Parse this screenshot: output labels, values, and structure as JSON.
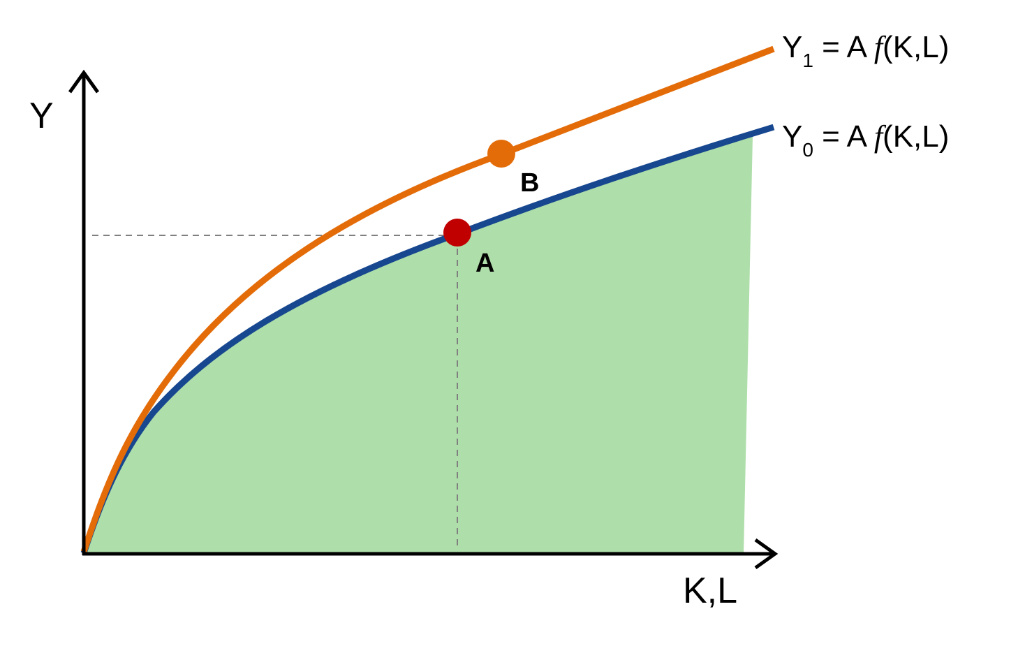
{
  "axes": {
    "y_label": "Y",
    "x_label": "K,L"
  },
  "curves": [
    {
      "id": "Y1",
      "symbol": "Y",
      "subscript": "1",
      "equals": " = A ",
      "func": "f",
      "args": "(K,L)",
      "color": "#E36C09"
    },
    {
      "id": "Y0",
      "symbol": "Y",
      "subscript": "0",
      "equals": " = A ",
      "func": "f",
      "args": "(K,L)",
      "color": "#17478F"
    }
  ],
  "points": {
    "A": {
      "label": "A",
      "color": "#C00000"
    },
    "B": {
      "label": "B",
      "color": "#E36C09"
    }
  },
  "colors": {
    "shaded_region": "#AEDEA9",
    "axis": "#000000",
    "guide_line": "#808080"
  }
}
